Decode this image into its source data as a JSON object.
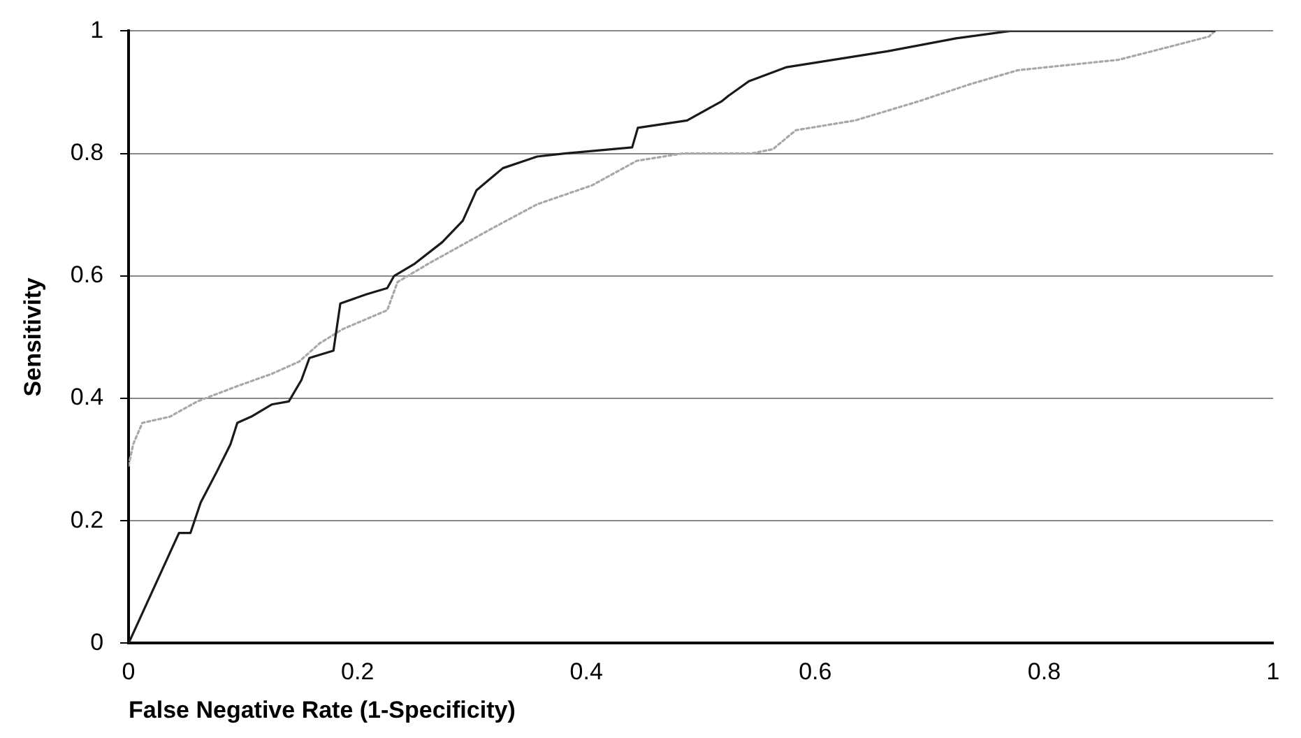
{
  "chart_data": {
    "type": "line",
    "xlabel": "False Negative Rate (1-Specificity)",
    "ylabel": "Sensitivity",
    "xlim": [
      0,
      1
    ],
    "xticks": [
      0,
      0.2,
      0.4,
      0.6,
      0.8,
      1
    ],
    "ylim": [
      0,
      1
    ],
    "yticks": [
      0,
      0.2,
      0.4,
      0.6,
      0.8,
      1
    ],
    "grid": "y",
    "legend": false,
    "marker": "none",
    "series": [
      {
        "color": "#1a1a1a",
        "line_style": "solid",
        "x": [
          0,
          0.044,
          0.054,
          0.063,
          0.077,
          0.089,
          0.095,
          0.107,
          0.125,
          0.14,
          0.151,
          0.158,
          0.179,
          0.185,
          0.208,
          0.226,
          0.232,
          0.25,
          0.274,
          0.292,
          0.304,
          0.327,
          0.357,
          0.381,
          0.44,
          0.445,
          0.488,
          0.518,
          0.524,
          0.542,
          0.575,
          0.663,
          0.723,
          0.77,
          0.949
        ],
        "values": [
          0,
          0.18,
          0.18,
          0.23,
          0.28,
          0.325,
          0.36,
          0.37,
          0.39,
          0.395,
          0.43,
          0.466,
          0.478,
          0.555,
          0.57,
          0.58,
          0.6,
          0.62,
          0.655,
          0.69,
          0.74,
          0.776,
          0.795,
          0.8,
          0.81,
          0.842,
          0.854,
          0.885,
          0.894,
          0.918,
          0.941,
          0.967,
          0.988,
          1,
          1
        ]
      },
      {
        "color": "#a8a8a8",
        "line_style": "dotted",
        "x": [
          0,
          0.004,
          0.012,
          0.036,
          0.06,
          0.095,
          0.125,
          0.149,
          0.167,
          0.187,
          0.226,
          0.235,
          0.262,
          0.318,
          0.357,
          0.405,
          0.444,
          0.484,
          0.544,
          0.563,
          0.583,
          0.635,
          0.69,
          0.735,
          0.777,
          0.865,
          0.913,
          0.944,
          0.949
        ],
        "values": [
          0.29,
          0.325,
          0.36,
          0.37,
          0.395,
          0.42,
          0.44,
          0.46,
          0.49,
          0.513,
          0.544,
          0.59,
          0.62,
          0.678,
          0.717,
          0.748,
          0.788,
          0.8,
          0.8,
          0.807,
          0.838,
          0.854,
          0.885,
          0.913,
          0.936,
          0.953,
          0.976,
          0.991,
          1
        ]
      }
    ]
  }
}
